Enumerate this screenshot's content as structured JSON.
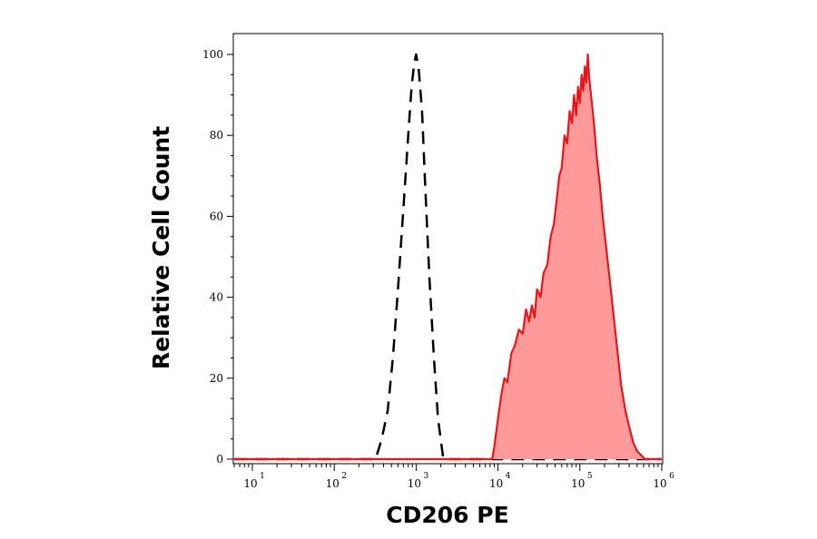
{
  "chart_data": {
    "type": "area",
    "title": "",
    "xlabel": "CD206 PE",
    "ylabel": "Relative Cell Count",
    "xscale": "log",
    "xlim": [
      6,
      1000000
    ],
    "ylim": [
      0,
      100
    ],
    "grid": false,
    "legend": "none",
    "x_ticks": [
      {
        "base": "10",
        "exp": "1",
        "value": 10
      },
      {
        "base": "10",
        "exp": "2",
        "value": 100
      },
      {
        "base": "10",
        "exp": "3",
        "value": 1000
      },
      {
        "base": "10",
        "exp": "4",
        "value": 10000
      },
      {
        "base": "10",
        "exp": "5",
        "value": 100000
      },
      {
        "base": "10",
        "exp": "6",
        "value": 1000000
      }
    ],
    "y_ticks": [
      "0",
      "20",
      "40",
      "60",
      "80",
      "100"
    ],
    "series": [
      {
        "style": "dashed",
        "color": "#000000",
        "fill": "none",
        "x": [
          6,
          320,
          380,
          450,
          520,
          600,
          700,
          800,
          880,
          950,
          1000,
          1080,
          1180,
          1300,
          1450,
          1650,
          1850,
          2150,
          1000000
        ],
        "y": [
          0,
          0,
          5,
          12,
          25,
          42,
          62,
          80,
          92,
          98,
          100,
          96,
          86,
          66,
          45,
          25,
          10,
          0,
          0
        ]
      },
      {
        "style": "solid",
        "color": "#e8161b",
        "fill": "#ff9a9a",
        "x": [
          6,
          8500,
          9000,
          10000,
          11000,
          12000,
          13000,
          14500,
          16000,
          18000,
          20000,
          22000,
          24000,
          26000,
          28000,
          30000,
          33000,
          36000,
          40000,
          44000,
          48000,
          52000,
          56000,
          60000,
          65000,
          70000,
          75000,
          80000,
          85000,
          90000,
          95000,
          100000,
          105000,
          110000,
          115000,
          120000,
          125000,
          130000,
          140000,
          150000,
          160000,
          175000,
          190000,
          210000,
          230000,
          260000,
          290000,
          320000,
          360000,
          400000,
          450000,
          500000,
          560000,
          620000,
          700000,
          1000000
        ],
        "y": [
          0,
          0,
          3,
          10,
          16,
          20,
          19,
          26,
          28,
          32,
          31,
          37,
          34,
          38,
          35,
          42,
          40,
          46,
          48,
          55,
          58,
          64,
          70,
          72,
          80,
          78,
          86,
          83,
          90,
          85,
          92,
          88,
          95,
          91,
          97,
          93,
          100,
          94,
          88,
          82,
          75,
          68,
          60,
          52,
          45,
          35,
          26,
          18,
          12,
          8,
          4,
          2,
          1,
          0,
          0,
          0
        ]
      }
    ]
  }
}
